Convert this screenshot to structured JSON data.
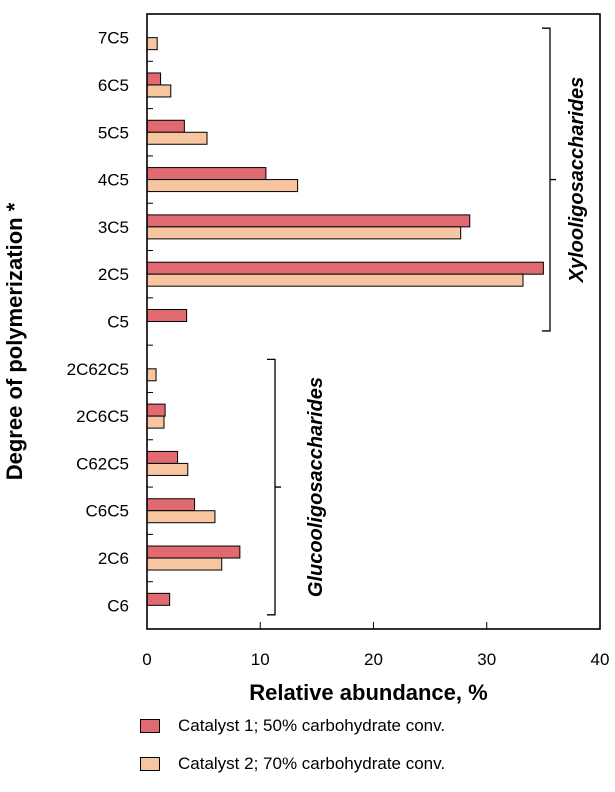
{
  "chart_data": {
    "type": "bar",
    "orientation": "horizontal",
    "categories": [
      "7C5",
      "6C5",
      "5C5",
      "4C5",
      "3C5",
      "2C5",
      "C5",
      "2C62C5",
      "2C6C5",
      "C62C5",
      "C6C5",
      "2C6",
      "C6"
    ],
    "series": [
      {
        "name": "Catalyst 1; 50% carbohydrate conv.",
        "color": "#e06a70",
        "values": [
          null,
          1.2,
          3.3,
          10.5,
          28.5,
          35.0,
          3.5,
          null,
          1.6,
          2.7,
          4.2,
          8.2,
          2.0
        ]
      },
      {
        "name": "Catalyst 2; 70% carbohydrate conv.",
        "color": "#f7c59f",
        "values": [
          0.9,
          2.1,
          5.3,
          13.3,
          27.7,
          33.2,
          null,
          0.8,
          1.5,
          3.6,
          6.0,
          6.6,
          null
        ]
      }
    ],
    "xlabel": "Relative abundance, %",
    "ylabel": "Degree of polymerization *",
    "xlim": [
      0,
      40
    ],
    "xticks": [
      "0",
      "10",
      "20",
      "30",
      "40"
    ],
    "grid": false,
    "legend_position": "bottom",
    "annotations": [
      {
        "text": "Xylooligosaccharides",
        "categories": [
          "7C5",
          "C5"
        ]
      },
      {
        "text": "Glucooligosaccharides",
        "categories": [
          "2C62C5",
          "C6"
        ]
      }
    ]
  }
}
